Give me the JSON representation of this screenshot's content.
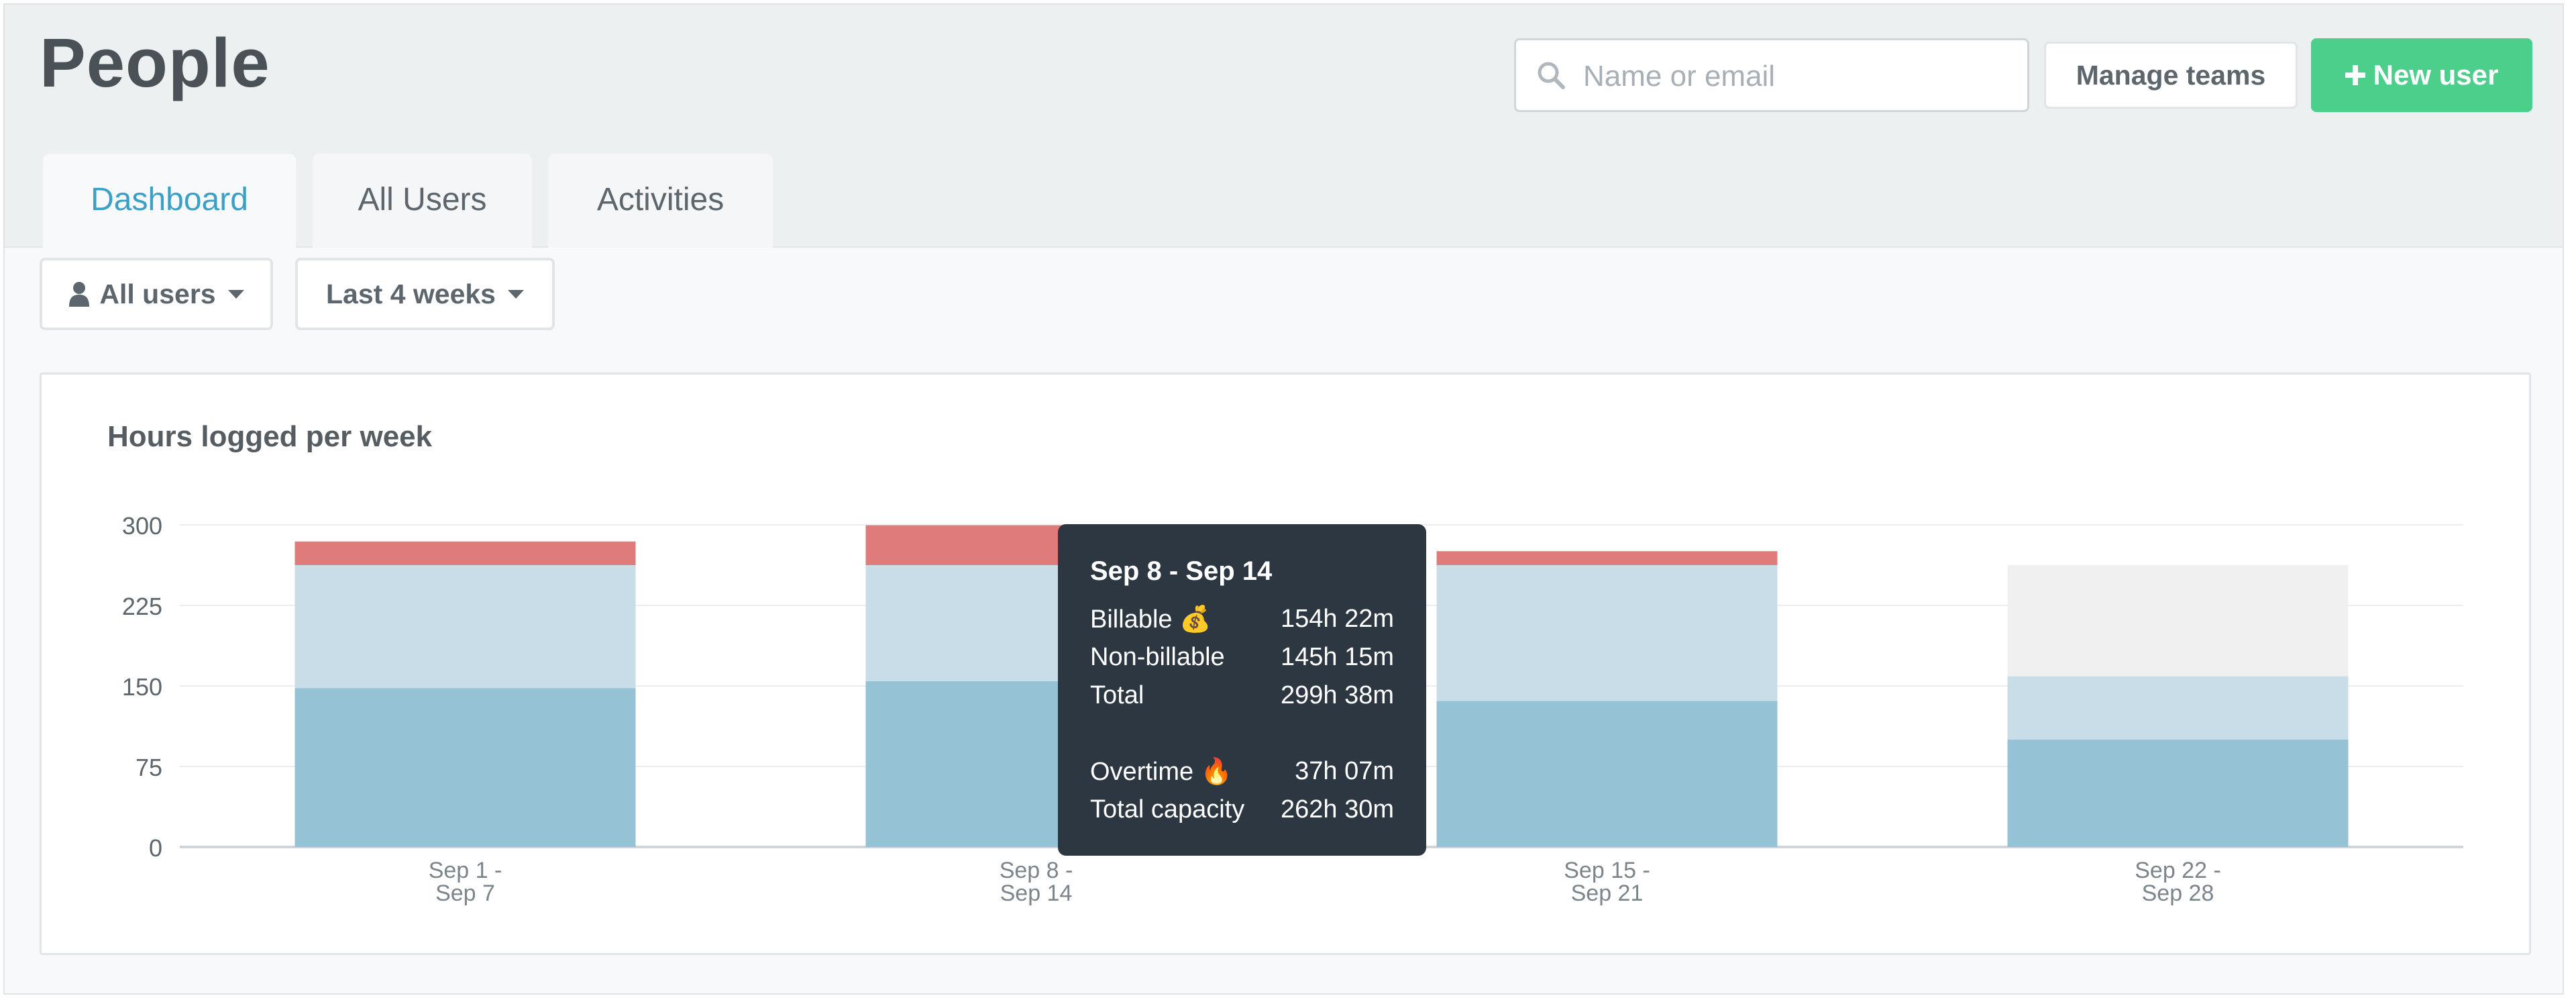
{
  "header": {
    "title": "People",
    "search": {
      "placeholder": "Name or email",
      "value": "",
      "icon": "search-icon"
    },
    "manage_teams_label": "Manage teams",
    "new_user_label": "New user",
    "new_user_icon": "plus-icon"
  },
  "tabs": [
    {
      "label": "Dashboard",
      "active": true
    },
    {
      "label": "All Users",
      "active": false
    },
    {
      "label": "Activities",
      "active": false
    }
  ],
  "filters": {
    "users": {
      "label": "All users",
      "icon": "user-icon"
    },
    "range": {
      "label": "Last 4 weeks"
    }
  },
  "colors": {
    "billable": "#95c2d5",
    "non_billable": "#c8dde7",
    "overtime": "#e07b7b",
    "remaining_capacity": "#f0f0f0",
    "accent": "#3aa0c7",
    "new_user_button": "#4ccf8a"
  },
  "chart_data": {
    "type": "bar",
    "stacked": true,
    "title": "Hours logged per week",
    "categories": [
      [
        "Sep 1 -",
        "Sep 7"
      ],
      [
        "Sep 8 -",
        "Sep 14"
      ],
      [
        "Sep 15 -",
        "Sep 21"
      ],
      [
        "Sep 22 -",
        "Sep 28"
      ]
    ],
    "series": [
      {
        "key": "billable",
        "values": [
          148,
          154.37,
          136,
          100
        ]
      },
      {
        "key": "non_billable",
        "values": [
          114.5,
          108.13,
          126.5,
          59
        ]
      },
      {
        "key": "overtime",
        "values": [
          22,
          37.12,
          13,
          0
        ]
      },
      {
        "key": "remaining_capacity",
        "values": [
          0,
          0,
          0,
          103.5
        ]
      }
    ],
    "yticks": [
      0,
      75,
      150,
      225,
      300
    ],
    "ylim": [
      0,
      300
    ],
    "grid": true
  },
  "tooltip": {
    "title": "Sep 8 - Sep 14",
    "rows": [
      {
        "label": "Billable 💰",
        "value": "154h 22m"
      },
      {
        "label": "Non-billable",
        "value": "145h 15m"
      },
      {
        "label": "Total",
        "value": "299h 38m"
      }
    ],
    "rows2": [
      {
        "label": "Overtime 🔥",
        "value": "37h 07m"
      },
      {
        "label": "Total capacity",
        "value": "262h 30m"
      }
    ]
  }
}
